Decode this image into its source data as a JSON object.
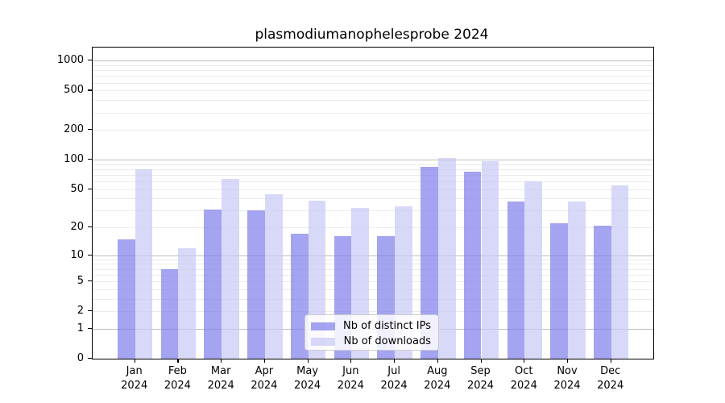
{
  "title": "plasmodiumanophelesprobe 2024",
  "chart_data": {
    "type": "bar",
    "title": "plasmodiumanophelesprobe 2024",
    "categories": [
      "Jan 2024",
      "Feb 2024",
      "Mar 2024",
      "Apr 2024",
      "May 2024",
      "Jun 2024",
      "Jul 2024",
      "Aug 2024",
      "Sep 2024",
      "Oct 2024",
      "Nov 2024",
      "Dec 2024"
    ],
    "x_tick_lines": [
      [
        "Jan",
        "2024"
      ],
      [
        "Feb",
        "2024"
      ],
      [
        "Mar",
        "2024"
      ],
      [
        "Apr",
        "2024"
      ],
      [
        "May",
        "2024"
      ],
      [
        "Jun",
        "2024"
      ],
      [
        "Jul",
        "2024"
      ],
      [
        "Aug",
        "2024"
      ],
      [
        "Sep",
        "2024"
      ],
      [
        "Oct",
        "2024"
      ],
      [
        "Nov",
        "2024"
      ],
      [
        "Dec",
        "2024"
      ]
    ],
    "series": [
      {
        "name": "Nb of distinct IPs",
        "color": "rgba(126,126,233,0.7)",
        "solid_color": "#a5a5f0",
        "values": [
          15,
          7,
          31,
          30,
          17,
          16,
          16,
          84,
          75,
          37,
          22,
          21
        ]
      },
      {
        "name": "Nb of downloads",
        "color": "rgba(200,200,245,0.7)",
        "solid_color": "#d9d9f7",
        "values": [
          80,
          12,
          64,
          44,
          38,
          32,
          33,
          104,
          97,
          60,
          37,
          55
        ]
      }
    ],
    "yscale": "log1p",
    "ylim": [
      0,
      1358
    ],
    "ytick_values": [
      0,
      1,
      2,
      5,
      10,
      20,
      50,
      100,
      200,
      500,
      1000
    ],
    "ytick_labels": [
      "0",
      "1",
      "2",
      "5",
      "10",
      "20",
      "50",
      "100",
      "200",
      "500",
      "1000"
    ],
    "major_grid_values": [
      1,
      10,
      100,
      1000
    ],
    "grid": true,
    "legend_position": "lower center",
    "xlabel": "",
    "ylabel": ""
  }
}
